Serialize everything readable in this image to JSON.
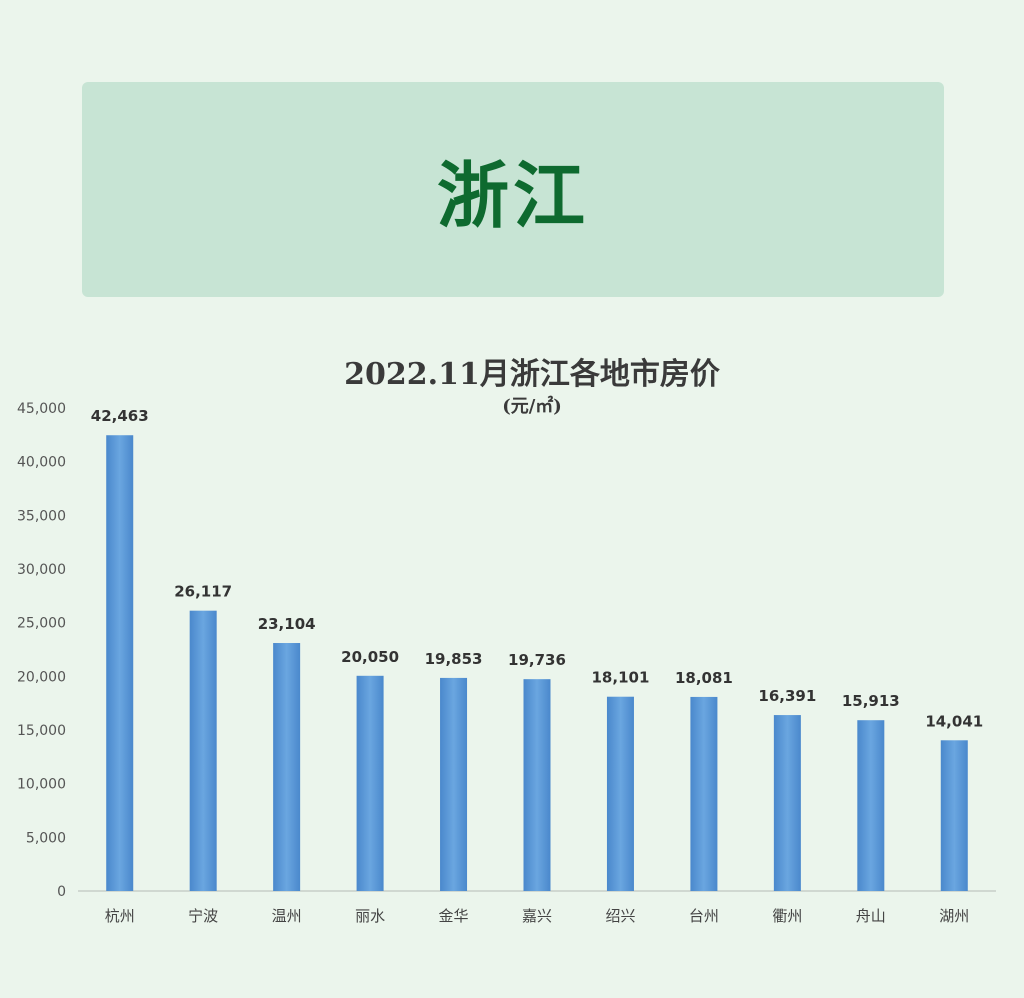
{
  "banner": {
    "title": "浙江"
  },
  "chart_data": {
    "type": "bar",
    "title": "2022.11月浙江各地市房价",
    "subtitle": "(元/㎡)",
    "xlabel": "",
    "ylabel": "",
    "ylim": [
      0,
      45000
    ],
    "yticks": [
      0,
      5000,
      10000,
      15000,
      20000,
      25000,
      30000,
      35000,
      40000,
      45000
    ],
    "ytick_labels": [
      "0",
      "5,000",
      "10,000",
      "15,000",
      "20,000",
      "25,000",
      "30,000",
      "35,000",
      "40,000",
      "45,000"
    ],
    "categories": [
      "杭州",
      "宁波",
      "温州",
      "丽水",
      "金华",
      "嘉兴",
      "绍兴",
      "台州",
      "衢州",
      "舟山",
      "湖州"
    ],
    "values": [
      42463,
      26117,
      23104,
      20050,
      19853,
      19736,
      18101,
      18081,
      16391,
      15913,
      14041
    ],
    "value_labels": [
      "42,463",
      "26,117",
      "23,104",
      "20,050",
      "19,853",
      "19,736",
      "18,101",
      "18,081",
      "16,391",
      "15,913",
      "14,041"
    ],
    "grid": false,
    "legend": "none",
    "bar_color": "#5b9bd5"
  }
}
